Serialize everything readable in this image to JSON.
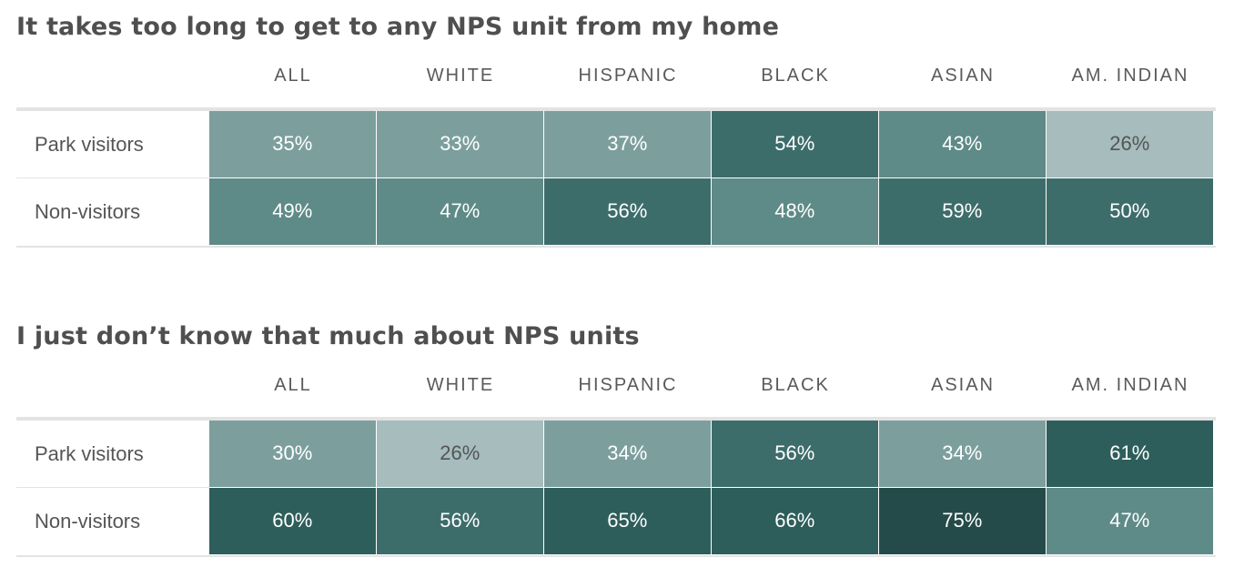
{
  "chart_data": [
    {
      "type": "heatmap",
      "title": "It takes too long to get to any NPS unit from my home",
      "columns": [
        "ALL",
        "WHITE",
        "HISPANIC",
        "BLACK",
        "ASIAN",
        "AM. INDIAN"
      ],
      "rows": [
        {
          "label": "Park visitors",
          "values": [
            35,
            33,
            37,
            54,
            43,
            26
          ]
        },
        {
          "label": "Non-visitors",
          "values": [
            49,
            47,
            56,
            48,
            59,
            50
          ]
        }
      ],
      "unit": "%"
    },
    {
      "type": "heatmap",
      "title": "I just don’t know that much about NPS units",
      "columns": [
        "ALL",
        "WHITE",
        "HISPANIC",
        "BLACK",
        "ASIAN",
        "AM. INDIAN"
      ],
      "rows": [
        {
          "label": "Park visitors",
          "values": [
            30,
            26,
            34,
            56,
            34,
            61
          ]
        },
        {
          "label": "Non-visitors",
          "values": [
            60,
            56,
            65,
            66,
            75,
            47
          ]
        }
      ],
      "unit": "%"
    }
  ],
  "colors": {
    "low": "#a6bcbd",
    "mid_low": "#7c9f9e",
    "mid": "#5e8a87",
    "mid_high": "#3d6d6b",
    "high": "#2e5e5b",
    "max": "#244b49",
    "light_text": "#555555",
    "dark_text": "#ffffff"
  }
}
